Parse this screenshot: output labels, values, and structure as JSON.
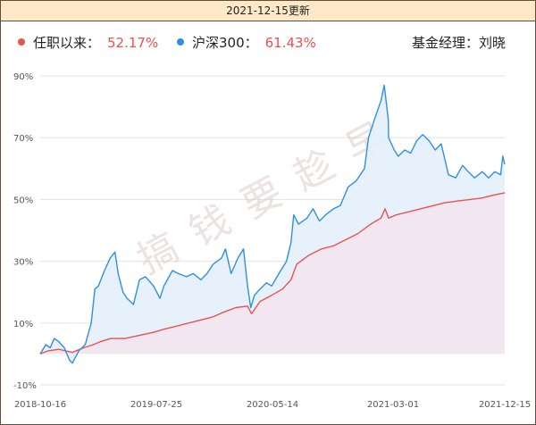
{
  "header": {
    "date_title": "2021-12-15更新"
  },
  "legend": {
    "fund_label": "任职以来：",
    "fund_value": "52.17%",
    "index_label": "沪深300：",
    "index_value": "61.43%",
    "manager_label": "基金经理：刘晓"
  },
  "watermark": "搞钱要趁早",
  "colors": {
    "fund": "#e8524f",
    "index": "#2f8fe0",
    "fund_fill": "#f3e4ef",
    "index_fill": "#e3eefb",
    "percent_text": "#e8524f",
    "header_bg": "#fde9c8",
    "border": "#6b4a3a"
  },
  "chart_data": {
    "type": "line",
    "title": "",
    "xlabel": "",
    "ylabel": "",
    "ylim": [
      -10,
      90
    ],
    "yticks": [
      "90%",
      "70%",
      "50%",
      "30%",
      "10%",
      "-10%"
    ],
    "ytick_values": [
      90,
      70,
      50,
      30,
      10,
      -10
    ],
    "x_tick_labels": [
      "2018-10-16",
      "2019-07-25",
      "2020-05-14",
      "2021-03-01",
      "2021-12-15"
    ],
    "x_range": [
      "2018-10-16",
      "2021-12-15"
    ],
    "grid": true,
    "series": [
      {
        "name": "任职以来",
        "points": [
          [
            "2018-10-16",
            0
          ],
          [
            "2018-11-05",
            1
          ],
          [
            "2018-12-01",
            1.5
          ],
          [
            "2019-01-04",
            0.5
          ],
          [
            "2019-02-01",
            2
          ],
          [
            "2019-02-25",
            3
          ],
          [
            "2019-03-15",
            4
          ],
          [
            "2019-04-10",
            5
          ],
          [
            "2019-05-15",
            5
          ],
          [
            "2019-06-20",
            6
          ],
          [
            "2019-07-25",
            7
          ],
          [
            "2019-08-20",
            8
          ],
          [
            "2019-09-20",
            9
          ],
          [
            "2019-10-20",
            10
          ],
          [
            "2019-11-20",
            11
          ],
          [
            "2019-12-20",
            12
          ],
          [
            "2020-01-15",
            13.5
          ],
          [
            "2020-02-15",
            15
          ],
          [
            "2020-03-15",
            15.5
          ],
          [
            "2020-03-25",
            13
          ],
          [
            "2020-04-15",
            17
          ],
          [
            "2020-05-14",
            19
          ],
          [
            "2020-06-10",
            21
          ],
          [
            "2020-07-01",
            24
          ],
          [
            "2020-07-15",
            29
          ],
          [
            "2020-08-15",
            32
          ],
          [
            "2020-09-15",
            34
          ],
          [
            "2020-10-15",
            35
          ],
          [
            "2020-11-15",
            37
          ],
          [
            "2020-12-15",
            39
          ],
          [
            "2021-01-15",
            42
          ],
          [
            "2021-02-10",
            44
          ],
          [
            "2021-02-20",
            47
          ],
          [
            "2021-03-01",
            44
          ],
          [
            "2021-03-20",
            45
          ],
          [
            "2021-04-20",
            46
          ],
          [
            "2021-05-20",
            47
          ],
          [
            "2021-06-20",
            48
          ],
          [
            "2021-07-20",
            49
          ],
          [
            "2021-08-20",
            49.5
          ],
          [
            "2021-09-20",
            50
          ],
          [
            "2021-10-20",
            50.5
          ],
          [
            "2021-11-20",
            51.5
          ],
          [
            "2021-12-15",
            52.17
          ]
        ]
      },
      {
        "name": "沪深300",
        "points": [
          [
            "2018-10-16",
            0
          ],
          [
            "2018-10-30",
            3
          ],
          [
            "2018-11-10",
            2
          ],
          [
            "2018-11-20",
            5
          ],
          [
            "2018-12-01",
            4
          ],
          [
            "2018-12-15",
            2
          ],
          [
            "2018-12-28",
            -2
          ],
          [
            "2019-01-04",
            -3
          ],
          [
            "2019-01-20",
            1
          ],
          [
            "2019-02-05",
            3
          ],
          [
            "2019-02-20",
            10
          ],
          [
            "2019-03-01",
            21
          ],
          [
            "2019-03-10",
            22
          ],
          [
            "2019-03-25",
            27
          ],
          [
            "2019-04-08",
            31
          ],
          [
            "2019-04-20",
            33
          ],
          [
            "2019-04-28",
            26
          ],
          [
            "2019-05-10",
            20
          ],
          [
            "2019-05-20",
            18
          ],
          [
            "2019-06-05",
            16
          ],
          [
            "2019-06-20",
            24
          ],
          [
            "2019-07-05",
            25
          ],
          [
            "2019-07-25",
            22
          ],
          [
            "2019-08-10",
            18
          ],
          [
            "2019-08-20",
            22
          ],
          [
            "2019-09-10",
            27
          ],
          [
            "2019-09-25",
            26
          ],
          [
            "2019-10-15",
            25
          ],
          [
            "2019-11-01",
            26
          ],
          [
            "2019-11-20",
            24
          ],
          [
            "2019-12-05",
            26
          ],
          [
            "2019-12-20",
            29
          ],
          [
            "2020-01-10",
            31
          ],
          [
            "2020-01-20",
            34
          ],
          [
            "2020-02-03",
            26
          ],
          [
            "2020-02-20",
            31
          ],
          [
            "2020-03-05",
            34
          ],
          [
            "2020-03-15",
            22
          ],
          [
            "2020-03-23",
            15
          ],
          [
            "2020-04-01",
            19
          ],
          [
            "2020-04-15",
            21
          ],
          [
            "2020-05-01",
            23
          ],
          [
            "2020-05-14",
            22
          ],
          [
            "2020-06-01",
            26
          ],
          [
            "2020-06-20",
            30
          ],
          [
            "2020-07-01",
            36
          ],
          [
            "2020-07-08",
            45
          ],
          [
            "2020-07-20",
            42
          ],
          [
            "2020-08-10",
            44
          ],
          [
            "2020-08-25",
            47
          ],
          [
            "2020-09-10",
            43
          ],
          [
            "2020-09-25",
            45
          ],
          [
            "2020-10-15",
            47
          ],
          [
            "2020-11-01",
            48
          ],
          [
            "2020-11-20",
            54
          ],
          [
            "2020-12-10",
            56
          ],
          [
            "2020-12-31",
            60
          ],
          [
            "2021-01-10",
            70
          ],
          [
            "2021-01-25",
            76
          ],
          [
            "2021-02-10",
            82
          ],
          [
            "2021-02-18",
            87
          ],
          [
            "2021-02-28",
            76
          ],
          [
            "2021-03-01",
            70
          ],
          [
            "2021-03-15",
            66
          ],
          [
            "2021-03-25",
            64
          ],
          [
            "2021-04-10",
            66
          ],
          [
            "2021-04-25",
            65
          ],
          [
            "2021-05-10",
            69
          ],
          [
            "2021-05-25",
            71
          ],
          [
            "2021-06-10",
            69
          ],
          [
            "2021-06-25",
            66
          ],
          [
            "2021-07-10",
            68
          ],
          [
            "2021-07-28",
            58
          ],
          [
            "2021-08-15",
            57
          ],
          [
            "2021-09-01",
            61
          ],
          [
            "2021-09-15",
            59
          ],
          [
            "2021-10-01",
            57
          ],
          [
            "2021-10-20",
            59
          ],
          [
            "2021-11-05",
            57
          ],
          [
            "2021-11-20",
            59
          ],
          [
            "2021-12-05",
            58
          ],
          [
            "2021-12-10",
            64
          ],
          [
            "2021-12-15",
            61.43
          ]
        ]
      }
    ]
  }
}
